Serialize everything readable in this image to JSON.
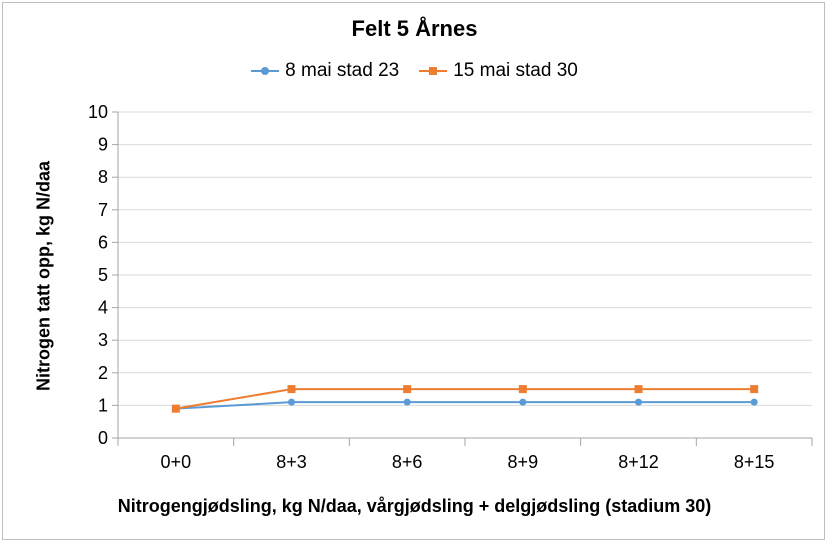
{
  "chart_data": {
    "type": "line",
    "title": "Felt 5 Årnes",
    "xlabel": "Nitrogengjødsling, kg N/daa, vårgjødsling + delgjødsling (stadium 30)",
    "ylabel": "Nitrogen tatt opp, kg N/daa",
    "categories": [
      "0+0",
      "8+3",
      "8+6",
      "8+9",
      "8+12",
      "8+15"
    ],
    "ylim": [
      0,
      10
    ],
    "yticks": [
      "0",
      "1",
      "2",
      "3",
      "4",
      "5",
      "6",
      "7",
      "8",
      "9",
      "10"
    ],
    "grid": true,
    "legend_position": "top",
    "series": [
      {
        "name": "8 mai stad 23",
        "values": [
          0.9,
          1.1,
          1.1,
          1.1,
          1.1,
          1.1
        ],
        "color": "#5b9bd5",
        "marker": "circle"
      },
      {
        "name": "15 mai stad 30",
        "values": [
          0.9,
          1.5,
          1.5,
          1.5,
          1.5,
          1.5
        ],
        "color": "#ed7d31",
        "marker": "square"
      }
    ]
  }
}
